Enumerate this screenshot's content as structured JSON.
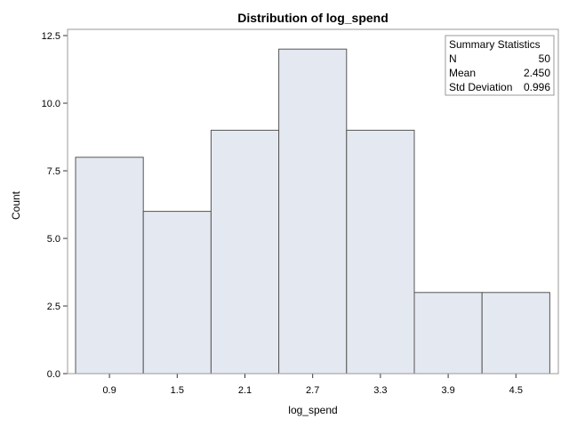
{
  "chart_data": {
    "type": "bar",
    "title": "Distribution of log_spend",
    "xlabel": "log_spend",
    "ylabel": "Count",
    "categories": [
      "0.9",
      "1.5",
      "2.1",
      "2.7",
      "3.3",
      "3.9",
      "4.5"
    ],
    "values": [
      8,
      6,
      9,
      12,
      9,
      3,
      3
    ],
    "ylim": [
      0,
      12.5
    ],
    "yticks": [
      "0.0",
      "2.5",
      "5.0",
      "7.5",
      "10.0",
      "12.5"
    ],
    "grid": false,
    "colors": {
      "bar_fill": "#e4e8f1",
      "bar_stroke": "#555555",
      "frame": "#999999"
    }
  },
  "summary_stats": {
    "heading": "Summary Statistics",
    "rows": [
      {
        "label": "N",
        "value": "50"
      },
      {
        "label": "Mean",
        "value": "2.450"
      },
      {
        "label": "Std Deviation",
        "value": "0.996"
      }
    ]
  }
}
